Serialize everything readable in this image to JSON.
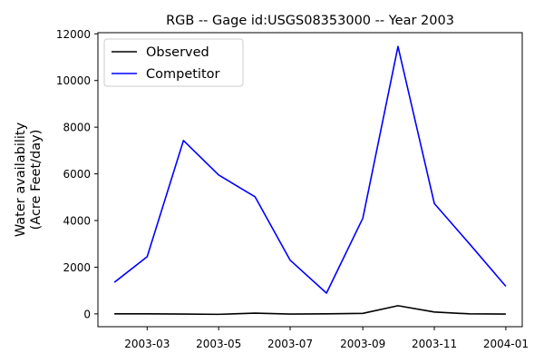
{
  "chart_data": {
    "type": "line",
    "title": "RGB -- Gage id:USGS08353000 -- Year 2003",
    "xlabel": "",
    "ylabel_lines": [
      "Water availability",
      "(Acre Feet/day)"
    ],
    "x": [
      "2003-02-01",
      "2003-03-01",
      "2003-04-01",
      "2003-05-01",
      "2003-06-01",
      "2003-07-01",
      "2003-08-01",
      "2003-09-01",
      "2003-10-01",
      "2003-11-01",
      "2003-12-01",
      "2004-01-01"
    ],
    "xlim": [
      "2003-01-18",
      "2004-01-15"
    ],
    "ylim": [
      -550,
      12050
    ],
    "x_ticks": [
      {
        "date": "2003-03-01",
        "label": "2003-03"
      },
      {
        "date": "2003-05-01",
        "label": "2003-05"
      },
      {
        "date": "2003-07-01",
        "label": "2003-07"
      },
      {
        "date": "2003-09-01",
        "label": "2003-09"
      },
      {
        "date": "2003-11-01",
        "label": "2003-11"
      },
      {
        "date": "2004-01-01",
        "label": "2004-01"
      }
    ],
    "y_ticks": [
      0,
      2000,
      4000,
      6000,
      8000,
      10000,
      12000
    ],
    "series": [
      {
        "name": "Observed",
        "color": "#000000",
        "values": [
          0,
          0,
          -10,
          -20,
          30,
          -10,
          0,
          20,
          350,
          80,
          0,
          -10
        ]
      },
      {
        "name": "Competitor",
        "color": "#0000ff",
        "values": [
          1350,
          2450,
          7430,
          5950,
          5020,
          2300,
          890,
          4100,
          11460,
          4730,
          3000,
          1180
        ]
      }
    ],
    "legend": "top-left",
    "grid": false
  }
}
